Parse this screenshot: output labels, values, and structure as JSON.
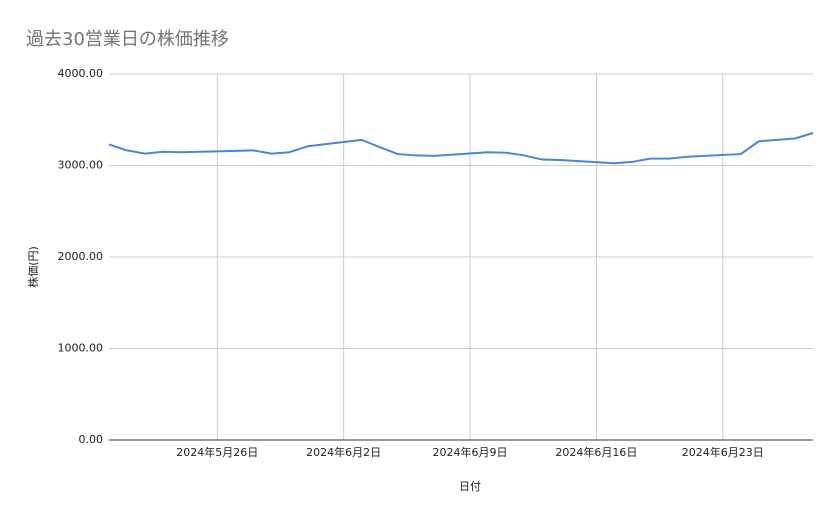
{
  "chart_data": {
    "type": "line",
    "title": "過去30営業日の株価推移",
    "x_label": "日付",
    "y_label": "株価(円)",
    "x": [
      "2024-05-20",
      "2024-05-21",
      "2024-05-22",
      "2024-05-23",
      "2024-05-24",
      "2024-05-27",
      "2024-05-28",
      "2024-05-29",
      "2024-05-30",
      "2024-05-31",
      "2024-06-03",
      "2024-06-04",
      "2024-06-05",
      "2024-06-06",
      "2024-06-07",
      "2024-06-10",
      "2024-06-11",
      "2024-06-12",
      "2024-06-13",
      "2024-06-14",
      "2024-06-17",
      "2024-06-18",
      "2024-06-19",
      "2024-06-20",
      "2024-06-21",
      "2024-06-24",
      "2024-06-25",
      "2024-06-26",
      "2024-06-27",
      "2024-06-28"
    ],
    "series": [
      {
        "name": "株価",
        "color": "#4a86d8",
        "values": [
          3230,
          3165,
          3130,
          3150,
          3145,
          3160,
          3165,
          3130,
          3145,
          3210,
          3280,
          3200,
          3125,
          3110,
          3105,
          3145,
          3140,
          3110,
          3065,
          3060,
          3025,
          3040,
          3075,
          3075,
          3095,
          3125,
          3265,
          3280,
          3295,
          3355
        ]
      }
    ],
    "xlim": [
      "2024-05-20",
      "2024-06-28"
    ],
    "xticks": [
      {
        "value": "2024-05-26",
        "label": "2024年5月26日"
      },
      {
        "value": "2024-06-02",
        "label": "2024年6月2日"
      },
      {
        "value": "2024-06-09",
        "label": "2024年6月9日"
      },
      {
        "value": "2024-06-16",
        "label": "2024年6月16日"
      },
      {
        "value": "2024-06-23",
        "label": "2024年6月23日"
      }
    ],
    "ylim": [
      0,
      4000
    ],
    "yticks": [
      {
        "value": 0,
        "label": "0.00"
      },
      {
        "value": 1000,
        "label": "1000.00"
      },
      {
        "value": 2000,
        "label": "2000.00"
      },
      {
        "value": 3000,
        "label": "3000.00"
      },
      {
        "value": 4000,
        "label": "4000.00"
      }
    ],
    "grid": true
  }
}
